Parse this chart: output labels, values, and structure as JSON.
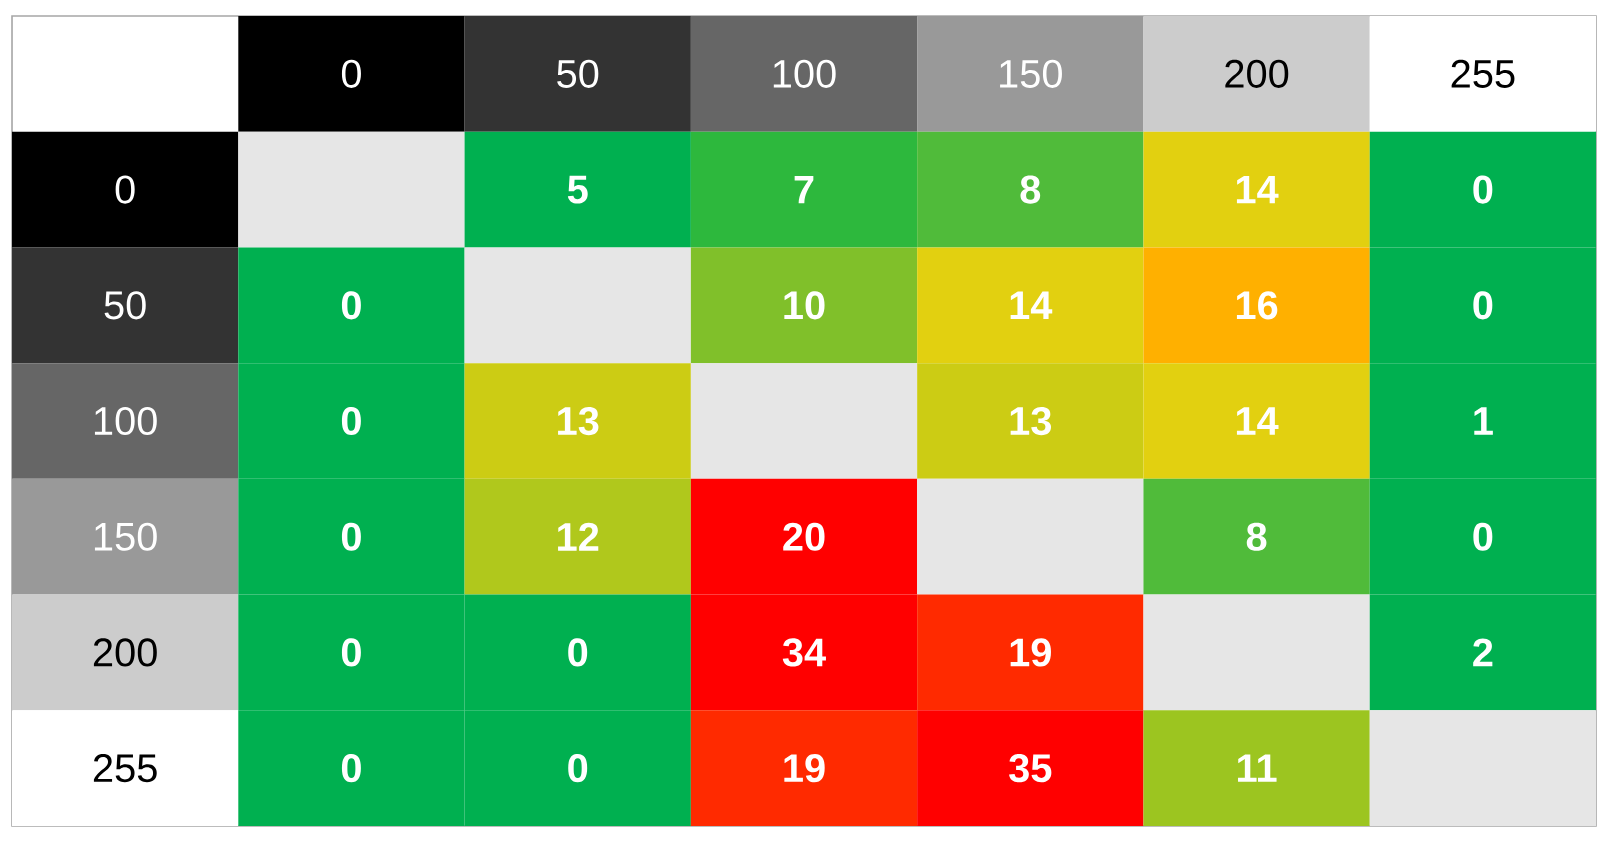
{
  "chart_data": {
    "type": "heatmap",
    "categories": [
      "0",
      "50",
      "100",
      "150",
      "200",
      "255"
    ],
    "y_categories": [
      "0",
      "50",
      "100",
      "150",
      "200",
      "255"
    ],
    "cells": [
      [
        null,
        5,
        7,
        8,
        14,
        0
      ],
      [
        0,
        null,
        10,
        14,
        16,
        0
      ],
      [
        0,
        13,
        null,
        13,
        14,
        1
      ],
      [
        0,
        12,
        20,
        null,
        8,
        0
      ],
      [
        0,
        0,
        34,
        19,
        null,
        2
      ],
      [
        0,
        0,
        19,
        35,
        11,
        null
      ]
    ],
    "data_labels": true
  }
}
